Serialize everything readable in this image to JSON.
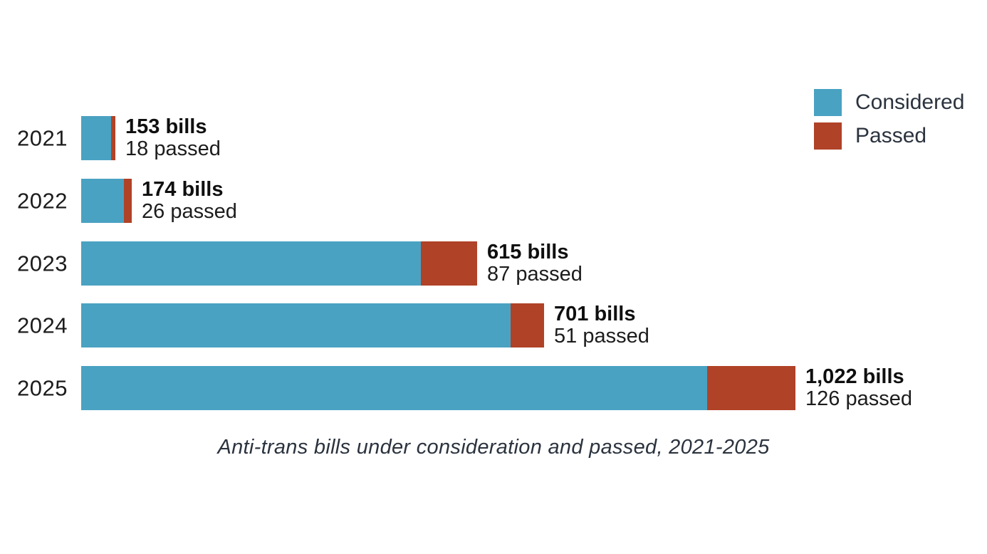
{
  "caption": "Anti-trans bills under consideration and passed, 2021-2025",
  "colors": {
    "considered": "#4aa2c2",
    "passed": "#b04227",
    "text_dark": "#2b333e",
    "label_bold": "#0f0f0f",
    "label_regular": "#1c1c1c",
    "background": "#ffffff"
  },
  "legend": {
    "position": "top-right",
    "items": [
      {
        "label": "Considered",
        "color_key": "considered"
      },
      {
        "label": "Passed",
        "color_key": "passed"
      }
    ]
  },
  "chart_data": {
    "type": "bar",
    "orientation": "horizontal",
    "stacked": true,
    "title": "",
    "caption": "Anti-trans bills under consideration and passed, 2021-2025",
    "categories": [
      "2021",
      "2022",
      "2023",
      "2024",
      "2025"
    ],
    "series": [
      {
        "name": "Considered",
        "values": [
          153,
          174,
          615,
          701,
          1022
        ]
      },
      {
        "name": "Passed",
        "values": [
          18,
          26,
          87,
          51,
          126
        ]
      }
    ],
    "legend_position": "top-right",
    "grid": false,
    "axis_labels_visible": false,
    "rows": [
      {
        "year": "2021",
        "bills": 153,
        "passed": 18,
        "bills_label": "153 bills",
        "passed_label": "18 passed"
      },
      {
        "year": "2022",
        "bills": 174,
        "passed": 26,
        "bills_label": "174 bills",
        "passed_label": "26 passed"
      },
      {
        "year": "2023",
        "bills": 615,
        "passed": 87,
        "bills_label": "615 bills",
        "passed_label": "87 passed"
      },
      {
        "year": "2024",
        "bills": 701,
        "passed": 51,
        "bills_label": "701 bills",
        "passed_label": "51 passed"
      },
      {
        "year": "2025",
        "bills": 1022,
        "passed": 126,
        "bills_label": "1,022 bills",
        "passed_label": "126 passed"
      }
    ]
  }
}
